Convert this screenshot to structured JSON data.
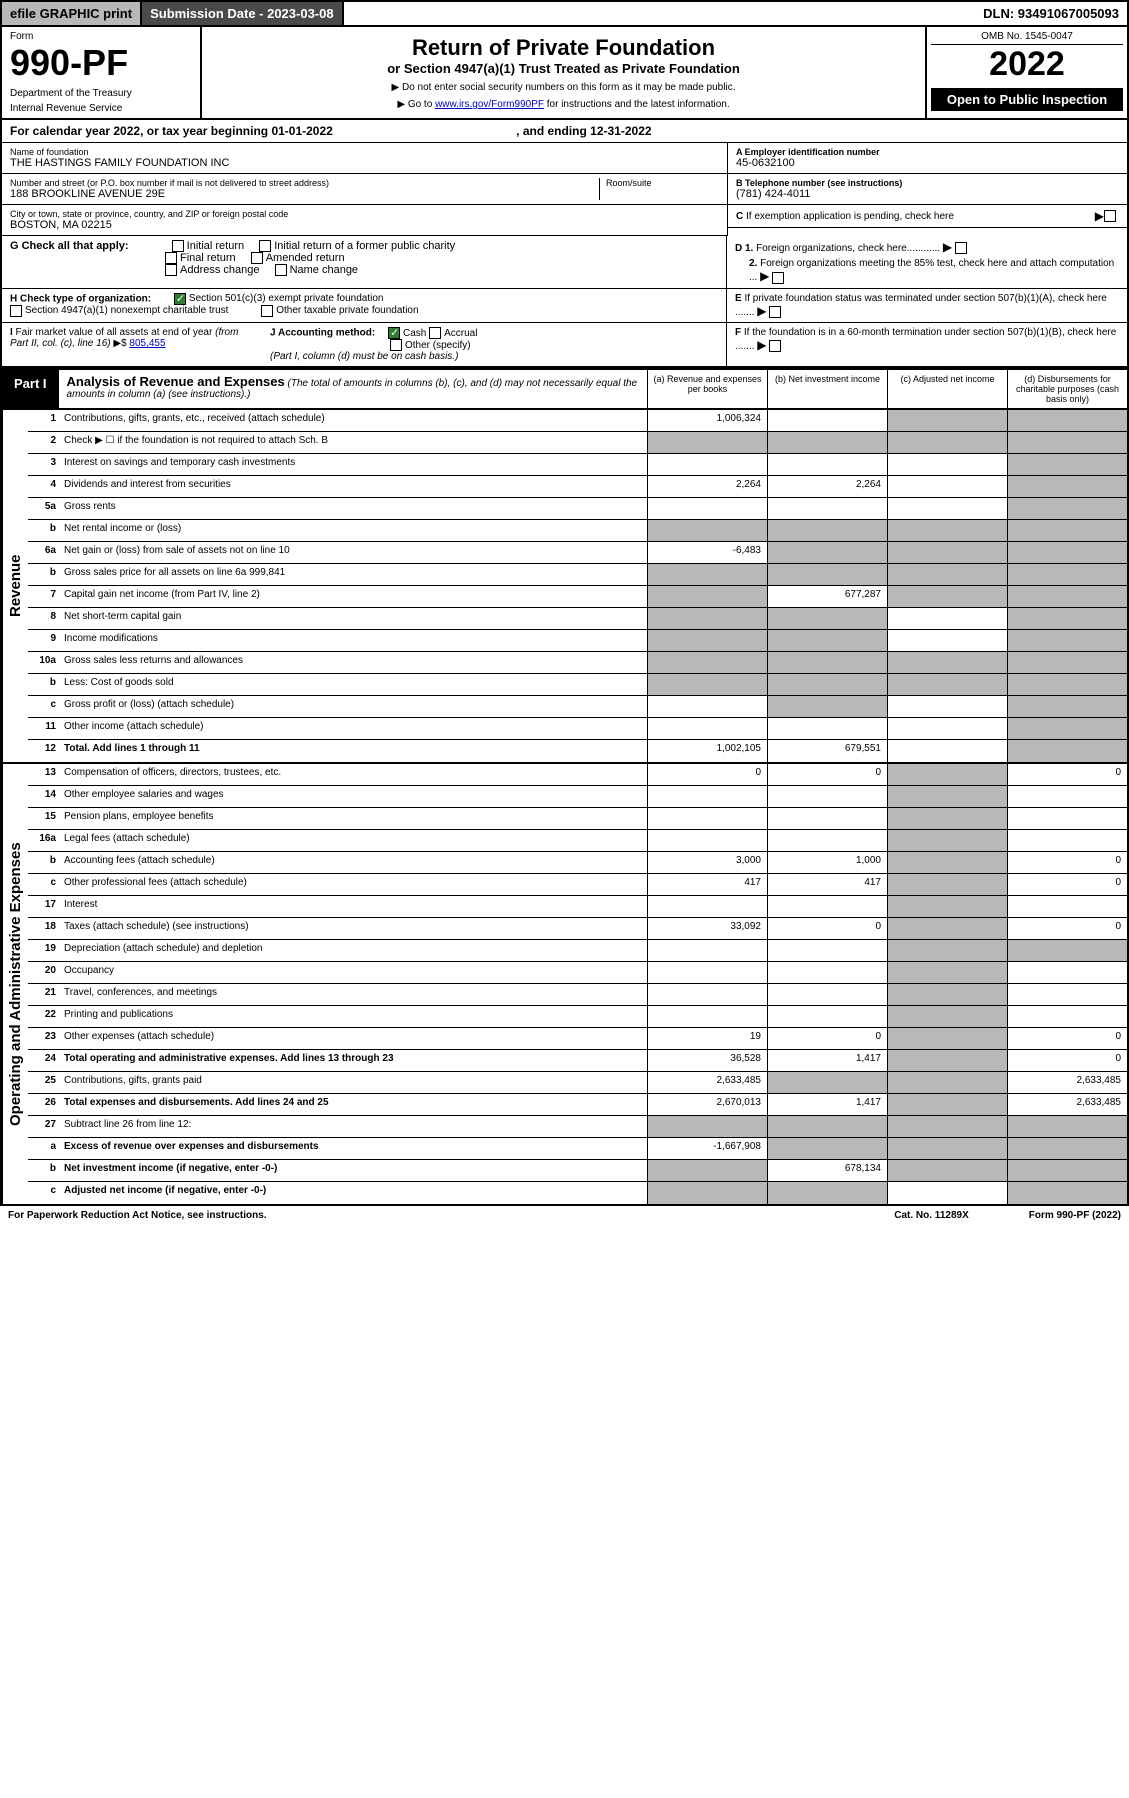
{
  "topBar": {
    "efile": "efile GRAPHIC print",
    "subDateLabel": "Submission Date - 2023-03-08",
    "dln": "DLN: 93491067005093"
  },
  "header": {
    "form": "Form",
    "formNo": "990-PF",
    "dept": "Department of the Treasury",
    "irs": "Internal Revenue Service",
    "title": "Return of Private Foundation",
    "subtitle": "or Section 4947(a)(1) Trust Treated as Private Foundation",
    "note1": "▶ Do not enter social security numbers on this form as it may be made public.",
    "note2": "▶ Go to ",
    "noteLink": "www.irs.gov/Form990PF",
    "note2b": " for instructions and the latest information.",
    "omb": "OMB No. 1545-0047",
    "year": "2022",
    "openPublic": "Open to Public Inspection"
  },
  "calYear": {
    "text": "For calendar year 2022, or tax year beginning 01-01-2022",
    "ending": ", and ending 12-31-2022"
  },
  "entity": {
    "nameLabel": "Name of foundation",
    "name": "THE HASTINGS FAMILY FOUNDATION INC",
    "addrLabel": "Number and street (or P.O. box number if mail is not delivered to street address)",
    "addr": "188 BROOKLINE AVENUE 29E",
    "roomLabel": "Room/suite",
    "cityLabel": "City or town, state or province, country, and ZIP or foreign postal code",
    "city": "BOSTON, MA  02215",
    "einLabel": "A Employer identification number",
    "ein": "45-0632100",
    "phoneLabel": "B Telephone number (see instructions)",
    "phone": "(781) 424-4011",
    "cLabel": "C If exemption application is pending, check here"
  },
  "checks": {
    "gLabel": "G Check all that apply:",
    "g1": "Initial return",
    "g2": "Initial return of a former public charity",
    "g3": "Final return",
    "g4": "Amended return",
    "g5": "Address change",
    "g6": "Name change",
    "hLabel": "H Check type of organization:",
    "h1": "Section 501(c)(3) exempt private foundation",
    "h2": "Section 4947(a)(1) nonexempt charitable trust",
    "h3": "Other taxable private foundation",
    "d1": "D 1. Foreign organizations, check here............",
    "d2": "2. Foreign organizations meeting the 85% test, check here and attach computation ...",
    "eLabel": "E  If private foundation status was terminated under section 507(b)(1)(A), check here .......",
    "iLabel": "I Fair market value of all assets at end of year (from Part II, col. (c), line 16)",
    "iVal": "805,455",
    "jLabel": "J Accounting method:",
    "j1": "Cash",
    "j2": "Accrual",
    "j3": "Other (specify)",
    "jNote": "(Part I, column (d) must be on cash basis.)",
    "fLabel": "F  If the foundation is in a 60-month termination under section 507(b)(1)(B), check here ......."
  },
  "part1": {
    "label": "Part I",
    "title": "Analysis of Revenue and Expenses",
    "titleNote": "(The total of amounts in columns (b), (c), and (d) may not necessarily equal the amounts in column (a) (see instructions).)",
    "colA": "(a) Revenue and expenses per books",
    "colB": "(b) Net investment income",
    "colC": "(c) Adjusted net income",
    "colD": "(d) Disbursements for charitable purposes (cash basis only)"
  },
  "sections": {
    "revenue": "Revenue",
    "expenses": "Operating and Administrative Expenses"
  },
  "rows": [
    {
      "n": "1",
      "d": "Contributions, gifts, grants, etc., received (attach schedule)",
      "a": "1,006,324",
      "b": "",
      "c": "grey",
      "dcol": "grey"
    },
    {
      "n": "2",
      "d": "Check ▶ ☐ if the foundation is not required to attach Sch. B",
      "a": "grey",
      "b": "grey",
      "c": "grey",
      "dcol": "grey"
    },
    {
      "n": "3",
      "d": "Interest on savings and temporary cash investments",
      "a": "",
      "b": "",
      "c": "",
      "dcol": "grey"
    },
    {
      "n": "4",
      "d": "Dividends and interest from securities",
      "a": "2,264",
      "b": "2,264",
      "c": "",
      "dcol": "grey"
    },
    {
      "n": "5a",
      "d": "Gross rents",
      "a": "",
      "b": "",
      "c": "",
      "dcol": "grey"
    },
    {
      "n": "b",
      "d": "Net rental income or (loss)",
      "a": "grey",
      "b": "grey",
      "c": "grey",
      "dcol": "grey"
    },
    {
      "n": "6a",
      "d": "Net gain or (loss) from sale of assets not on line 10",
      "a": "-6,483",
      "b": "grey",
      "c": "grey",
      "dcol": "grey"
    },
    {
      "n": "b",
      "d": "Gross sales price for all assets on line 6a    999,841",
      "a": "grey",
      "b": "grey",
      "c": "grey",
      "dcol": "grey"
    },
    {
      "n": "7",
      "d": "Capital gain net income (from Part IV, line 2)",
      "a": "grey",
      "b": "677,287",
      "c": "grey",
      "dcol": "grey"
    },
    {
      "n": "8",
      "d": "Net short-term capital gain",
      "a": "grey",
      "b": "grey",
      "c": "",
      "dcol": "grey"
    },
    {
      "n": "9",
      "d": "Income modifications",
      "a": "grey",
      "b": "grey",
      "c": "",
      "dcol": "grey"
    },
    {
      "n": "10a",
      "d": "Gross sales less returns and allowances",
      "a": "grey",
      "b": "grey",
      "c": "grey",
      "dcol": "grey"
    },
    {
      "n": "b",
      "d": "Less: Cost of goods sold",
      "a": "grey",
      "b": "grey",
      "c": "grey",
      "dcol": "grey"
    },
    {
      "n": "c",
      "d": "Gross profit or (loss) (attach schedule)",
      "a": "",
      "b": "grey",
      "c": "",
      "dcol": "grey"
    },
    {
      "n": "11",
      "d": "Other income (attach schedule)",
      "a": "",
      "b": "",
      "c": "",
      "dcol": "grey"
    },
    {
      "n": "12",
      "d": "Total. Add lines 1 through 11",
      "a": "1,002,105",
      "b": "679,551",
      "c": "",
      "dcol": "grey",
      "bold": true
    }
  ],
  "expRows": [
    {
      "n": "13",
      "d": "Compensation of officers, directors, trustees, etc.",
      "a": "0",
      "b": "0",
      "c": "grey",
      "dcol": "0"
    },
    {
      "n": "14",
      "d": "Other employee salaries and wages",
      "a": "",
      "b": "",
      "c": "grey",
      "dcol": ""
    },
    {
      "n": "15",
      "d": "Pension plans, employee benefits",
      "a": "",
      "b": "",
      "c": "grey",
      "dcol": ""
    },
    {
      "n": "16a",
      "d": "Legal fees (attach schedule)",
      "a": "",
      "b": "",
      "c": "grey",
      "dcol": ""
    },
    {
      "n": "b",
      "d": "Accounting fees (attach schedule)",
      "a": "3,000",
      "b": "1,000",
      "c": "grey",
      "dcol": "0"
    },
    {
      "n": "c",
      "d": "Other professional fees (attach schedule)",
      "a": "417",
      "b": "417",
      "c": "grey",
      "dcol": "0"
    },
    {
      "n": "17",
      "d": "Interest",
      "a": "",
      "b": "",
      "c": "grey",
      "dcol": ""
    },
    {
      "n": "18",
      "d": "Taxes (attach schedule) (see instructions)",
      "a": "33,092",
      "b": "0",
      "c": "grey",
      "dcol": "0"
    },
    {
      "n": "19",
      "d": "Depreciation (attach schedule) and depletion",
      "a": "",
      "b": "",
      "c": "grey",
      "dcol": "grey"
    },
    {
      "n": "20",
      "d": "Occupancy",
      "a": "",
      "b": "",
      "c": "grey",
      "dcol": ""
    },
    {
      "n": "21",
      "d": "Travel, conferences, and meetings",
      "a": "",
      "b": "",
      "c": "grey",
      "dcol": ""
    },
    {
      "n": "22",
      "d": "Printing and publications",
      "a": "",
      "b": "",
      "c": "grey",
      "dcol": ""
    },
    {
      "n": "23",
      "d": "Other expenses (attach schedule)",
      "a": "19",
      "b": "0",
      "c": "grey",
      "dcol": "0"
    },
    {
      "n": "24",
      "d": "Total operating and administrative expenses. Add lines 13 through 23",
      "a": "36,528",
      "b": "1,417",
      "c": "grey",
      "dcol": "0",
      "bold": true
    },
    {
      "n": "25",
      "d": "Contributions, gifts, grants paid",
      "a": "2,633,485",
      "b": "grey",
      "c": "grey",
      "dcol": "2,633,485"
    },
    {
      "n": "26",
      "d": "Total expenses and disbursements. Add lines 24 and 25",
      "a": "2,670,013",
      "b": "1,417",
      "c": "grey",
      "dcol": "2,633,485",
      "bold": true
    },
    {
      "n": "27",
      "d": "Subtract line 26 from line 12:",
      "a": "grey",
      "b": "grey",
      "c": "grey",
      "dcol": "grey"
    },
    {
      "n": "a",
      "d": "Excess of revenue over expenses and disbursements",
      "a": "-1,667,908",
      "b": "grey",
      "c": "grey",
      "dcol": "grey",
      "bold": true
    },
    {
      "n": "b",
      "d": "Net investment income (if negative, enter -0-)",
      "a": "grey",
      "b": "678,134",
      "c": "grey",
      "dcol": "grey",
      "bold": true
    },
    {
      "n": "c",
      "d": "Adjusted net income (if negative, enter -0-)",
      "a": "grey",
      "b": "grey",
      "c": "",
      "dcol": "grey",
      "bold": true
    }
  ],
  "footer": {
    "left": "For Paperwork Reduction Act Notice, see instructions.",
    "cat": "Cat. No. 11289X",
    "right": "Form 990-PF (2022)"
  }
}
